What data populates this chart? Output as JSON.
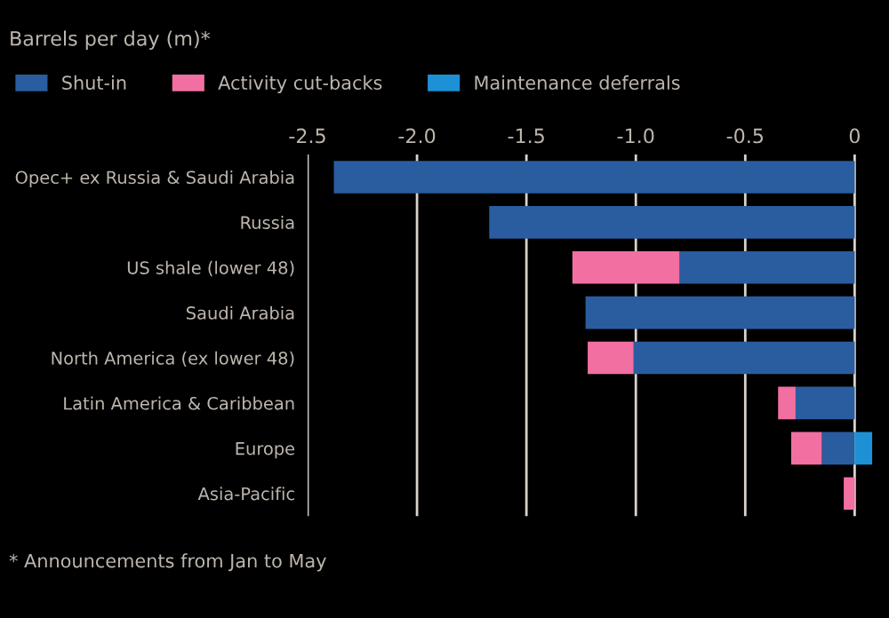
{
  "chart_data": {
    "type": "bar",
    "orientation": "horizontal",
    "stacked": true,
    "subtitle": "Barrels per day (m)*",
    "categories": [
      "Opec+ ex Russia & Saudi Arabia",
      "Russia",
      "US shale (lower 48)",
      "Saudi Arabia",
      "North America (ex lower 48)",
      "Latin America & Caribbean",
      "Europe",
      "Asia-Pacific"
    ],
    "series": [
      {
        "name": "Shut-in",
        "color": "#2a5d9f",
        "values": [
          -2.38,
          -1.67,
          -0.8,
          -1.23,
          -1.01,
          -0.27,
          -0.15,
          null
        ]
      },
      {
        "name": "Activity cut-backs",
        "color": "#f26fa2",
        "values": [
          null,
          null,
          -0.49,
          null,
          -0.21,
          -0.08,
          -0.14,
          -0.05
        ]
      },
      {
        "name": "Maintenance deferrals",
        "color": "#1e90d6",
        "values": [
          null,
          null,
          null,
          null,
          null,
          null,
          0.08,
          null
        ]
      }
    ],
    "xlim": [
      -2.5,
      0.1
    ],
    "xticks": [
      -2.5,
      {
        "value": -2,
        "label": "-2.0"
      },
      -1.5,
      {
        "value": -1,
        "label": "-1.0"
      },
      -0.5,
      0
    ],
    "grid": "x",
    "legend": "top",
    "annotations": [
      "* Announcements from Jan to May"
    ]
  }
}
